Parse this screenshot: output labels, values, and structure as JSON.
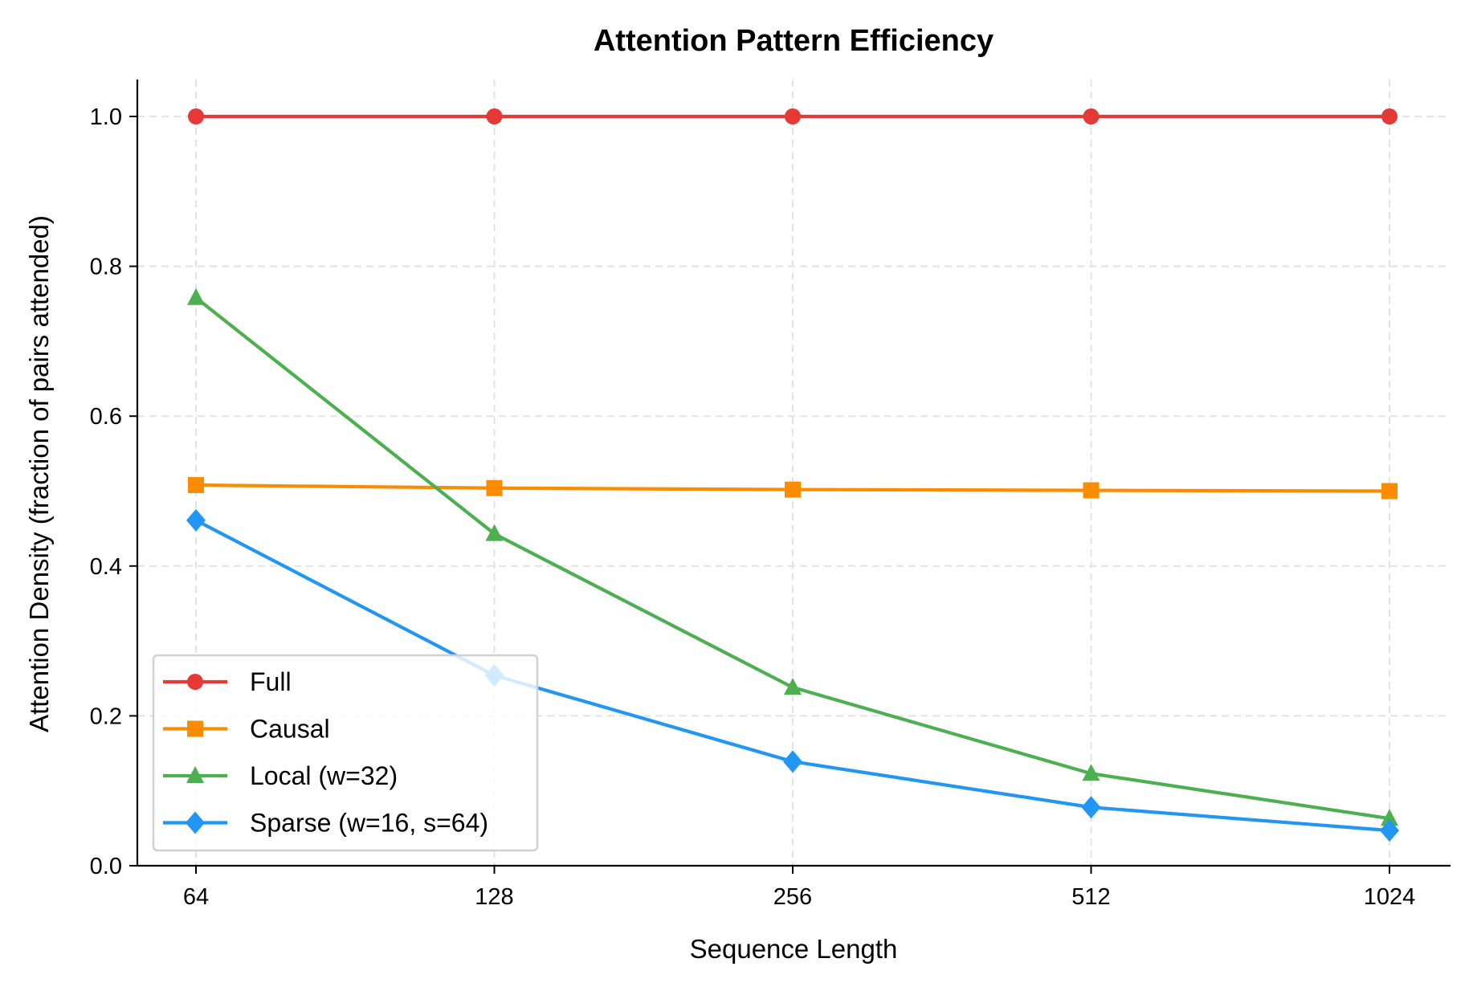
{
  "chart_data": {
    "type": "line",
    "title": "Attention Pattern Efficiency",
    "xlabel": "Sequence Length",
    "ylabel": "Attention Density (fraction of pairs attended)",
    "x_scale": "log2",
    "x": [
      64,
      128,
      256,
      512,
      1024
    ],
    "x_tick_labels": [
      "64",
      "128",
      "256",
      "512",
      "1024"
    ],
    "ylim": [
      0,
      1.05
    ],
    "y_ticks": [
      0.0,
      0.2,
      0.4,
      0.6,
      0.8,
      1.0
    ],
    "y_tick_labels": [
      "0.0",
      "0.2",
      "0.4",
      "0.6",
      "0.8",
      "1.0"
    ],
    "grid": true,
    "legend_position": "lower-left",
    "series": [
      {
        "name": "Full",
        "color": "#e53935",
        "marker": "circle",
        "values": [
          1.0,
          1.0,
          1.0,
          1.0,
          1.0
        ]
      },
      {
        "name": "Causal",
        "color": "#fb8c00",
        "marker": "square",
        "values": [
          0.508,
          0.504,
          0.502,
          0.501,
          0.5
        ]
      },
      {
        "name": "Local (w=32)",
        "color": "#4caf50",
        "marker": "triangle",
        "values": [
          0.758,
          0.443,
          0.238,
          0.123,
          0.063
        ]
      },
      {
        "name": "Sparse (w=16, s=64)",
        "color": "#2196f3",
        "marker": "diamond",
        "values": [
          0.461,
          0.254,
          0.139,
          0.078,
          0.047
        ]
      }
    ]
  }
}
